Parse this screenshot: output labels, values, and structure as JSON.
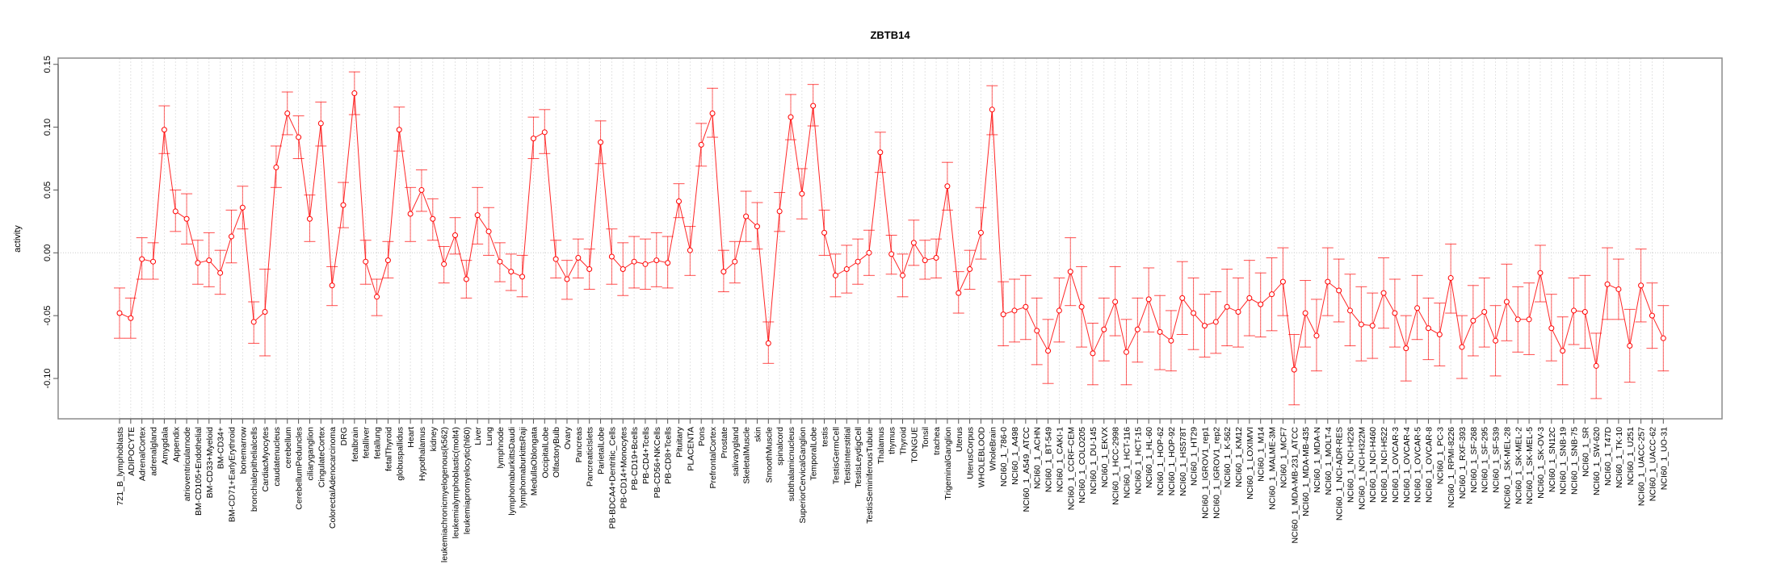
{
  "chart_data": {
    "type": "line",
    "title": "ZBTB14",
    "xlabel": "",
    "ylabel": "activity",
    "ylim": [
      -0.125,
      0.155
    ],
    "yticks": [
      -0.1,
      -0.05,
      0.0,
      0.05,
      0.1,
      0.15
    ],
    "ytick_labels": [
      "-0.10",
      "-0.05",
      "0.00",
      "0.05",
      "0.10",
      "0.15"
    ],
    "grid": "vertical dotted at each category; horizontal dotted at 0",
    "legend": "none",
    "series_color": "#ff0000",
    "categories": [
      "721_B_lymphoblasts",
      "ADIPOCYTE",
      "AdrenalCortex",
      "adrenalgland",
      "Amygdala",
      "Appendix",
      "atrioventricularnode",
      "BM-CD105+Endothelial",
      "BM-CD33+Myeloid",
      "BM-CD34+",
      "BM-CD71+EarlyErythroid",
      "bonemarrow",
      "bronchialepithelialcells",
      "CardiacMyocytes",
      "caudatenucleus",
      "cerebellum",
      "CerebellumPeduncles",
      "ciliaryganglion",
      "CingulateCortex",
      "ColorectalAdenocarcinoma",
      "DRG",
      "fetalbrain",
      "fetalliver",
      "fetallung",
      "fetalThyroid",
      "globuspallidus",
      "Heart",
      "Hypothalamus",
      "kidney",
      "leukemiachronicmyelogenous(k562)",
      "leukemialymphoblastic(molt4)",
      "leukemiapromyelocytic(hl60)",
      "Liver",
      "Lung",
      "lymphnode",
      "lymphomaburkittsDaudi",
      "lymphomaburkittsRaji",
      "MedullaOblongata",
      "OccipitalLobe",
      "OlfactoryBulb",
      "Ovary",
      "Pancreas",
      "PancreaticIslets",
      "ParietalLobe",
      "PB-BDCA4+Dentritic_Cells",
      "PB-CD14+Monocytes",
      "PB-CD19+Bcells",
      "PB-CD4+Tcells",
      "PB-CD56+NKCells",
      "PB-CD8+Tcells",
      "Pituitary",
      "PLACENTA",
      "Pons",
      "PrefrontalCortex",
      "Prostate",
      "salivarygland",
      "SkeletalMuscle",
      "skin",
      "SmoothMuscle",
      "spinalcord",
      "subthalamicnucleus",
      "SuperiorCervicalGanglion",
      "TemporalLobe",
      "testis",
      "TestisGermCell",
      "TestisInterstitial",
      "TestisLeydigCell",
      "TestisSeminiferousTubule",
      "Thalamus",
      "thymus",
      "Thyroid",
      "TONGUE",
      "Tonsil",
      "trachea",
      "TrigeminalGanglion",
      "Uterus",
      "UterusCorpus",
      "WHOLEBLOOD",
      "WholeBrain",
      "NCI60_1_786-0",
      "NCI60_1_A498",
      "NCI60_1_A549_ATCC",
      "NCI60_1_ACHN",
      "NCI60_1_BT-549",
      "NCI60_1_CAKI-1",
      "NCI60_1_CCRF-CEM",
      "NCI60_1_COLO205",
      "NCI60_1_DU-145",
      "NCI60_1_EKVX",
      "NCI60_1_HCC-2998",
      "NCI60_1_HCT-116",
      "NCI60_1_HCT-15",
      "NCI60_1_HL-60",
      "NCI60_1_HOP-62",
      "NCI60_1_HOP-92",
      "NCI60_1_HS578T",
      "NCI60_1_HT29",
      "NCI60_1_IGROV1_rep1",
      "NCI60_1_IGROV1_rep2",
      "NCI60_1_K-562",
      "NCI60_1_KM12",
      "NCI60_1_LOXIMVI",
      "NCI60_1_M14",
      "NCI60_1_MALME-3M",
      "NCI60_1_MCF7",
      "NCI60_1_MDA-MB-231_ATCC",
      "NCI60_1_MDA-MB-435",
      "NCI60_1_MDA-N",
      "NCI60_1_MOLT-4",
      "NCI60_1_NCI-ADR-RES",
      "NCI60_1_NCI-H226",
      "NCI60_1_NCI-H322M",
      "NCI60_1_NCI-H460",
      "NCI60_1_NCI-H522",
      "NCI60_1_OVCAR-3",
      "NCI60_1_OVCAR-4",
      "NCI60_1_OVCAR-5",
      "NCI60_1_OVCAR-8",
      "NCI60_1_PC-3",
      "NCI60_1_RPMI-8226",
      "NCI60_1_RXF-393",
      "NCI60_1_SF-268",
      "NCI60_1_SF-295",
      "NCI60_1_SF-539",
      "NCI60_1_SK-MEL-28",
      "NCI60_1_SK-MEL-2",
      "NCI60_1_SK-MEL-5",
      "NCI60_1_SK-OV-3",
      "NCI60_1_SN12C",
      "NCI60_1_SNB-19",
      "NCI60_1_SNB-75",
      "NCI60_1_SR",
      "NCI60_1_SW-620",
      "NCI60_1_T47D",
      "NCI60_1_TK-10",
      "NCI60_1_U251",
      "NCI60_1_UACC-257",
      "NCI60_1_UACC-62",
      "NCI60_1_UO-31"
    ],
    "series": [
      {
        "name": "activity",
        "values": [
          -0.048,
          -0.052,
          -0.005,
          -0.007,
          0.098,
          0.033,
          0.027,
          -0.008,
          -0.006,
          -0.016,
          0.013,
          0.036,
          -0.055,
          -0.047,
          0.068,
          0.111,
          0.092,
          0.027,
          0.103,
          -0.026,
          0.038,
          0.127,
          -0.007,
          -0.035,
          -0.006,
          0.098,
          0.031,
          0.05,
          0.027,
          -0.009,
          0.014,
          -0.021,
          0.03,
          0.017,
          -0.007,
          -0.015,
          -0.019,
          0.091,
          0.096,
          -0.005,
          -0.021,
          -0.004,
          -0.013,
          0.088,
          -0.003,
          -0.013,
          -0.007,
          -0.009,
          -0.006,
          -0.008,
          0.041,
          0.002,
          0.086,
          0.111,
          -0.015,
          -0.007,
          0.029,
          0.021,
          -0.072,
          0.033,
          0.108,
          0.047,
          0.117,
          0.016,
          -0.018,
          -0.013,
          -0.007,
          0.0,
          0.08,
          -0.001,
          -0.018,
          0.008,
          -0.006,
          -0.004,
          0.053,
          -0.032,
          -0.013,
          0.016,
          0.114,
          -0.049,
          -0.046,
          -0.043,
          -0.062,
          -0.078,
          -0.046,
          -0.015,
          -0.043,
          -0.08,
          -0.061,
          -0.039,
          -0.079,
          -0.061,
          -0.037,
          -0.063,
          -0.07,
          -0.036,
          -0.048,
          -0.058,
          -0.055,
          -0.043,
          -0.047,
          -0.036,
          -0.041,
          -0.033,
          -0.023,
          -0.093,
          -0.048,
          -0.066,
          -0.023,
          -0.03,
          -0.046,
          -0.057,
          -0.058,
          -0.032,
          -0.048,
          -0.076,
          -0.044,
          -0.06,
          -0.065,
          -0.02,
          -0.075,
          -0.054,
          -0.047,
          -0.07,
          -0.039,
          -0.053,
          -0.053,
          -0.016,
          -0.06,
          -0.078,
          -0.046,
          -0.047,
          -0.09,
          -0.025,
          -0.029,
          -0.074,
          -0.026,
          -0.05,
          -0.068
        ],
        "lower": [
          -0.068,
          -0.068,
          -0.021,
          -0.021,
          0.079,
          0.017,
          0.007,
          -0.025,
          -0.027,
          -0.033,
          -0.008,
          0.019,
          -0.072,
          -0.082,
          0.052,
          0.094,
          0.075,
          0.009,
          0.085,
          -0.042,
          0.02,
          0.11,
          -0.025,
          -0.05,
          -0.02,
          0.081,
          0.009,
          0.033,
          0.01,
          -0.024,
          -0.001,
          -0.036,
          0.007,
          -0.002,
          -0.023,
          -0.03,
          -0.035,
          0.075,
          0.079,
          -0.02,
          -0.037,
          -0.02,
          -0.029,
          0.071,
          -0.025,
          -0.034,
          -0.028,
          -0.029,
          -0.027,
          -0.028,
          0.028,
          -0.018,
          0.069,
          0.092,
          -0.031,
          -0.024,
          0.009,
          0.003,
          -0.088,
          0.017,
          0.09,
          0.027,
          0.101,
          -0.002,
          -0.035,
          -0.032,
          -0.025,
          -0.018,
          0.064,
          -0.017,
          -0.035,
          -0.01,
          -0.021,
          -0.02,
          0.034,
          -0.048,
          -0.029,
          -0.005,
          0.094,
          -0.074,
          -0.071,
          -0.069,
          -0.089,
          -0.104,
          -0.071,
          -0.042,
          -0.075,
          -0.105,
          -0.086,
          -0.066,
          -0.105,
          -0.087,
          -0.063,
          -0.093,
          -0.094,
          -0.065,
          -0.077,
          -0.083,
          -0.08,
          -0.074,
          -0.075,
          -0.066,
          -0.067,
          -0.062,
          -0.05,
          -0.121,
          -0.075,
          -0.094,
          -0.05,
          -0.055,
          -0.074,
          -0.086,
          -0.084,
          -0.06,
          -0.075,
          -0.102,
          -0.069,
          -0.085,
          -0.09,
          -0.048,
          -0.1,
          -0.082,
          -0.075,
          -0.098,
          -0.07,
          -0.079,
          -0.081,
          -0.039,
          -0.086,
          -0.105,
          -0.073,
          -0.076,
          -0.116,
          -0.053,
          -0.053,
          -0.103,
          -0.055,
          -0.076,
          -0.094
        ],
        "upper": [
          -0.028,
          -0.036,
          0.012,
          0.008,
          0.117,
          0.05,
          0.047,
          0.01,
          0.016,
          0.002,
          0.034,
          0.053,
          -0.039,
          -0.013,
          0.085,
          0.128,
          0.109,
          0.046,
          0.12,
          -0.011,
          0.056,
          0.144,
          0.01,
          -0.021,
          0.009,
          0.116,
          0.052,
          0.066,
          0.043,
          0.005,
          0.028,
          -0.006,
          0.052,
          0.036,
          0.008,
          -0.001,
          -0.002,
          0.108,
          0.114,
          0.01,
          -0.006,
          0.011,
          0.003,
          0.105,
          0.019,
          0.008,
          0.013,
          0.011,
          0.016,
          0.013,
          0.055,
          0.021,
          0.103,
          0.131,
          0.002,
          0.009,
          0.049,
          0.04,
          -0.055,
          0.048,
          0.126,
          0.067,
          0.134,
          0.034,
          -0.001,
          0.006,
          0.011,
          0.018,
          0.096,
          0.014,
          -0.001,
          0.026,
          0.01,
          0.011,
          0.072,
          -0.015,
          0.002,
          0.036,
          0.133,
          -0.023,
          -0.021,
          -0.018,
          -0.036,
          -0.053,
          -0.02,
          0.012,
          -0.011,
          -0.056,
          -0.036,
          -0.011,
          -0.053,
          -0.036,
          -0.012,
          -0.034,
          -0.046,
          -0.007,
          -0.02,
          -0.033,
          -0.031,
          -0.013,
          -0.02,
          -0.006,
          -0.016,
          -0.004,
          0.004,
          -0.065,
          -0.022,
          -0.037,
          0.004,
          -0.005,
          -0.017,
          -0.027,
          -0.032,
          -0.004,
          -0.021,
          -0.05,
          -0.018,
          -0.036,
          -0.04,
          0.007,
          -0.05,
          -0.026,
          -0.02,
          -0.042,
          -0.009,
          -0.027,
          -0.024,
          0.006,
          -0.033,
          -0.051,
          -0.02,
          -0.018,
          -0.064,
          0.004,
          -0.005,
          -0.045,
          0.003,
          -0.024,
          -0.042
        ]
      }
    ]
  }
}
